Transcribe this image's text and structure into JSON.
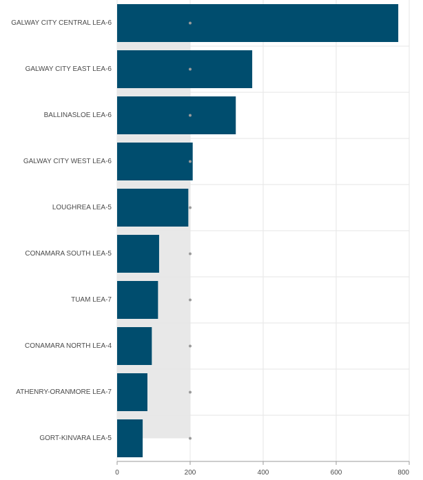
{
  "chart_data": {
    "type": "bar",
    "orientation": "horizontal",
    "categories": [
      "GALWAY CITY CENTRAL LEA-6",
      "GALWAY CITY EAST LEA-6",
      "BALLINASLOE LEA-6",
      "GALWAY CITY WEST LEA-6",
      "LOUGHREA LEA-5",
      "CONAMARA SOUTH LEA-5",
      "TUAM LEA-7",
      "CONAMARA NORTH LEA-4",
      "ATHENRY-ORANMORE LEA-7",
      "GORT-KINVARA LEA-5"
    ],
    "series": [
      {
        "values": [
          770,
          370,
          325,
          207,
          195,
          115,
          112,
          95,
          83,
          70
        ]
      }
    ],
    "reference": {
      "value": 200,
      "marker": "dot",
      "shaded_below": true
    },
    "xlim": [
      0,
      800
    ],
    "xticks": [
      0,
      200,
      400,
      600,
      800
    ],
    "grid": true,
    "title": "",
    "xlabel": "",
    "ylabel": "",
    "colors": {
      "bar": "#004d6e",
      "reference_band": "#e8e8e8",
      "reference_dot": "#9a9a9a",
      "grid": "#e6e6e6",
      "axis": "#9a9a9a",
      "text": "#4a4a4a"
    }
  }
}
